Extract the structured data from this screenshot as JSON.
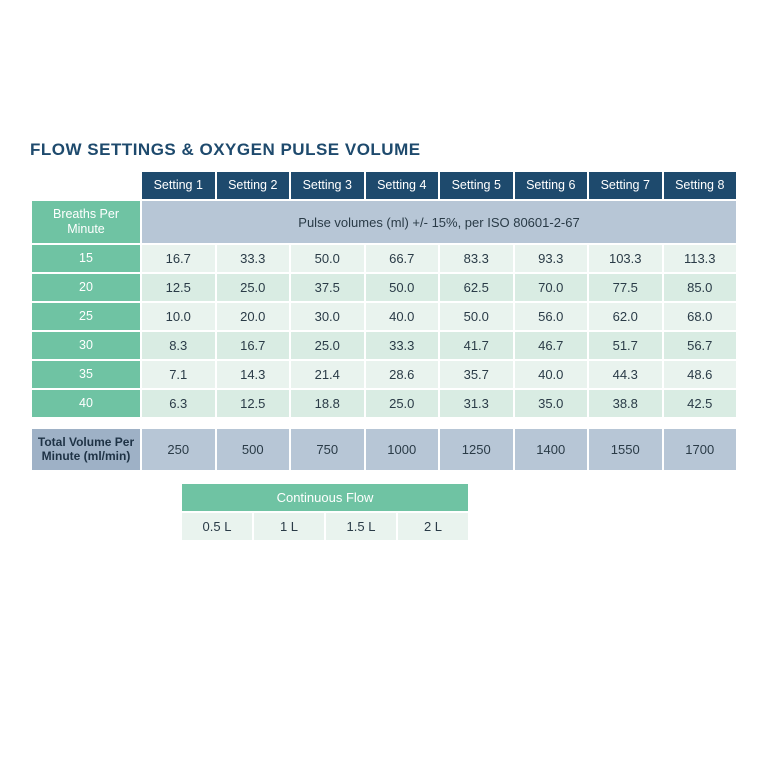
{
  "title": "FLOW SETTINGS & OXYGEN PULSE VOLUME",
  "table": {
    "type": "table",
    "colors": {
      "header_bg": "#1e4a6d",
      "header_fg": "#ffffff",
      "row_label_green_bg": "#6fc3a3",
      "row_label_green_fg": "#ffffff",
      "caption_bg": "#b7c6d6",
      "cell_alt_a": "#e9f3ee",
      "cell_alt_b": "#d9ece3",
      "total_label_bg": "#9eb1c6",
      "total_cell_bg": "#b7c6d6",
      "title_color": "#1e4a6d",
      "text_color": "#2a3b47"
    },
    "fontsize": {
      "title": 17,
      "header": 12.5,
      "cell": 13
    },
    "columns": [
      "Setting 1",
      "Setting 2",
      "Setting 3",
      "Setting 4",
      "Setting 5",
      "Setting 6",
      "Setting 7",
      "Setting 8"
    ],
    "left_header": "Breaths Per Minute",
    "caption": "Pulse volumes (ml) +/- 15%, per ISO 80601-2-67",
    "row_labels": [
      "15",
      "20",
      "25",
      "30",
      "35",
      "40"
    ],
    "rows": [
      [
        "16.7",
        "33.3",
        "50.0",
        "66.7",
        "83.3",
        "93.3",
        "103.3",
        "113.3"
      ],
      [
        "12.5",
        "25.0",
        "37.5",
        "50.0",
        "62.5",
        "70.0",
        "77.5",
        "85.0"
      ],
      [
        "10.0",
        "20.0",
        "30.0",
        "40.0",
        "50.0",
        "56.0",
        "62.0",
        "68.0"
      ],
      [
        "8.3",
        "16.7",
        "25.0",
        "33.3",
        "41.7",
        "46.7",
        "51.7",
        "56.7"
      ],
      [
        "7.1",
        "14.3",
        "21.4",
        "28.6",
        "35.7",
        "40.0",
        "44.3",
        "48.6"
      ],
      [
        "6.3",
        "12.5",
        "18.8",
        "25.0",
        "31.3",
        "35.0",
        "38.8",
        "42.5"
      ]
    ],
    "total_label": "Total Volume Per Minute (ml/min)",
    "totals": [
      "250",
      "500",
      "750",
      "1000",
      "1250",
      "1400",
      "1550",
      "1700"
    ]
  },
  "continuous": {
    "header": "Continuous Flow",
    "values": [
      "0.5 L",
      "1 L",
      "1.5 L",
      "2 L"
    ],
    "colors": {
      "header_bg": "#6fc3a3",
      "cell_bg": "#e9f3ee"
    }
  }
}
